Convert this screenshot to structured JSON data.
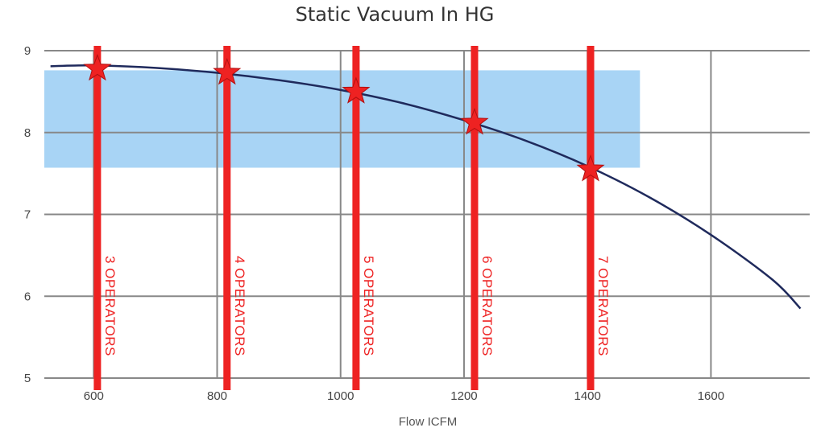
{
  "chart_data": {
    "type": "line",
    "title": "Static Vacuum In HG",
    "xlabel": "Flow ICFM",
    "ylabel": "",
    "xlim": [
      520,
      1760
    ],
    "ylim": [
      5,
      9
    ],
    "x_ticks": [
      600,
      800,
      1000,
      1200,
      1400,
      1600
    ],
    "y_ticks": [
      5,
      6,
      7,
      8,
      9
    ],
    "grid": true,
    "series": [
      {
        "x": [
          530,
          600,
          700,
          800,
          900,
          1000,
          1100,
          1200,
          1300,
          1400,
          1500,
          1600,
          1700,
          1745
        ],
        "y": [
          8.81,
          8.82,
          8.79,
          8.73,
          8.64,
          8.52,
          8.36,
          8.15,
          7.9,
          7.59,
          7.21,
          6.75,
          6.2,
          5.85
        ]
      }
    ],
    "band": {
      "y_from": 7.57,
      "y_to": 8.76,
      "x_from": 520,
      "x_to": 1485
    },
    "operators": [
      {
        "label": "3 OPERATORS",
        "x": 606,
        "y": 8.78
      },
      {
        "label": "4 OPERATORS",
        "x": 816,
        "y": 8.73
      },
      {
        "label": "5 OPERATORS",
        "x": 1025,
        "y": 8.5
      },
      {
        "label": "6 OPERATORS",
        "x": 1217,
        "y": 8.12
      },
      {
        "label": "7 OPERATORS",
        "x": 1405,
        "y": 7.55
      }
    ],
    "colors": {
      "curve": "#1f2a5c",
      "band": "#a8d4f5",
      "operator": "#ee2222",
      "grid": "#888888"
    }
  }
}
